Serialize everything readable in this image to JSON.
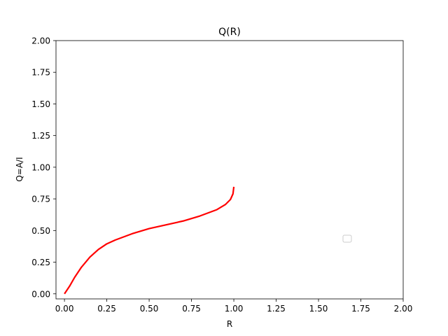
{
  "chart_data": {
    "type": "line",
    "title": "Q(R)",
    "xlabel": "R",
    "ylabel": "Q=A/I",
    "xlim": [
      -0.05,
      2.0
    ],
    "ylim": [
      -0.04,
      2.0
    ],
    "xticks": [
      "0.00",
      "0.25",
      "0.50",
      "0.75",
      "1.00",
      "1.25",
      "1.50",
      "1.75",
      "2.00"
    ],
    "yticks": [
      "0.00",
      "0.25",
      "0.50",
      "0.75",
      "1.00",
      "1.25",
      "1.50",
      "1.75",
      "2.00"
    ],
    "grid": false,
    "legend": {
      "placement": "right",
      "entries": []
    },
    "series": [
      {
        "color": "#ff0000",
        "x": [
          0.0,
          0.03,
          0.06,
          0.1,
          0.15,
          0.2,
          0.25,
          0.3,
          0.4,
          0.5,
          0.6,
          0.7,
          0.8,
          0.9,
          0.95,
          0.98,
          0.995,
          1.0
        ],
        "y": [
          0.0,
          0.06,
          0.13,
          0.21,
          0.29,
          0.35,
          0.395,
          0.425,
          0.475,
          0.515,
          0.545,
          0.575,
          0.615,
          0.665,
          0.705,
          0.745,
          0.79,
          0.845
        ]
      }
    ]
  }
}
